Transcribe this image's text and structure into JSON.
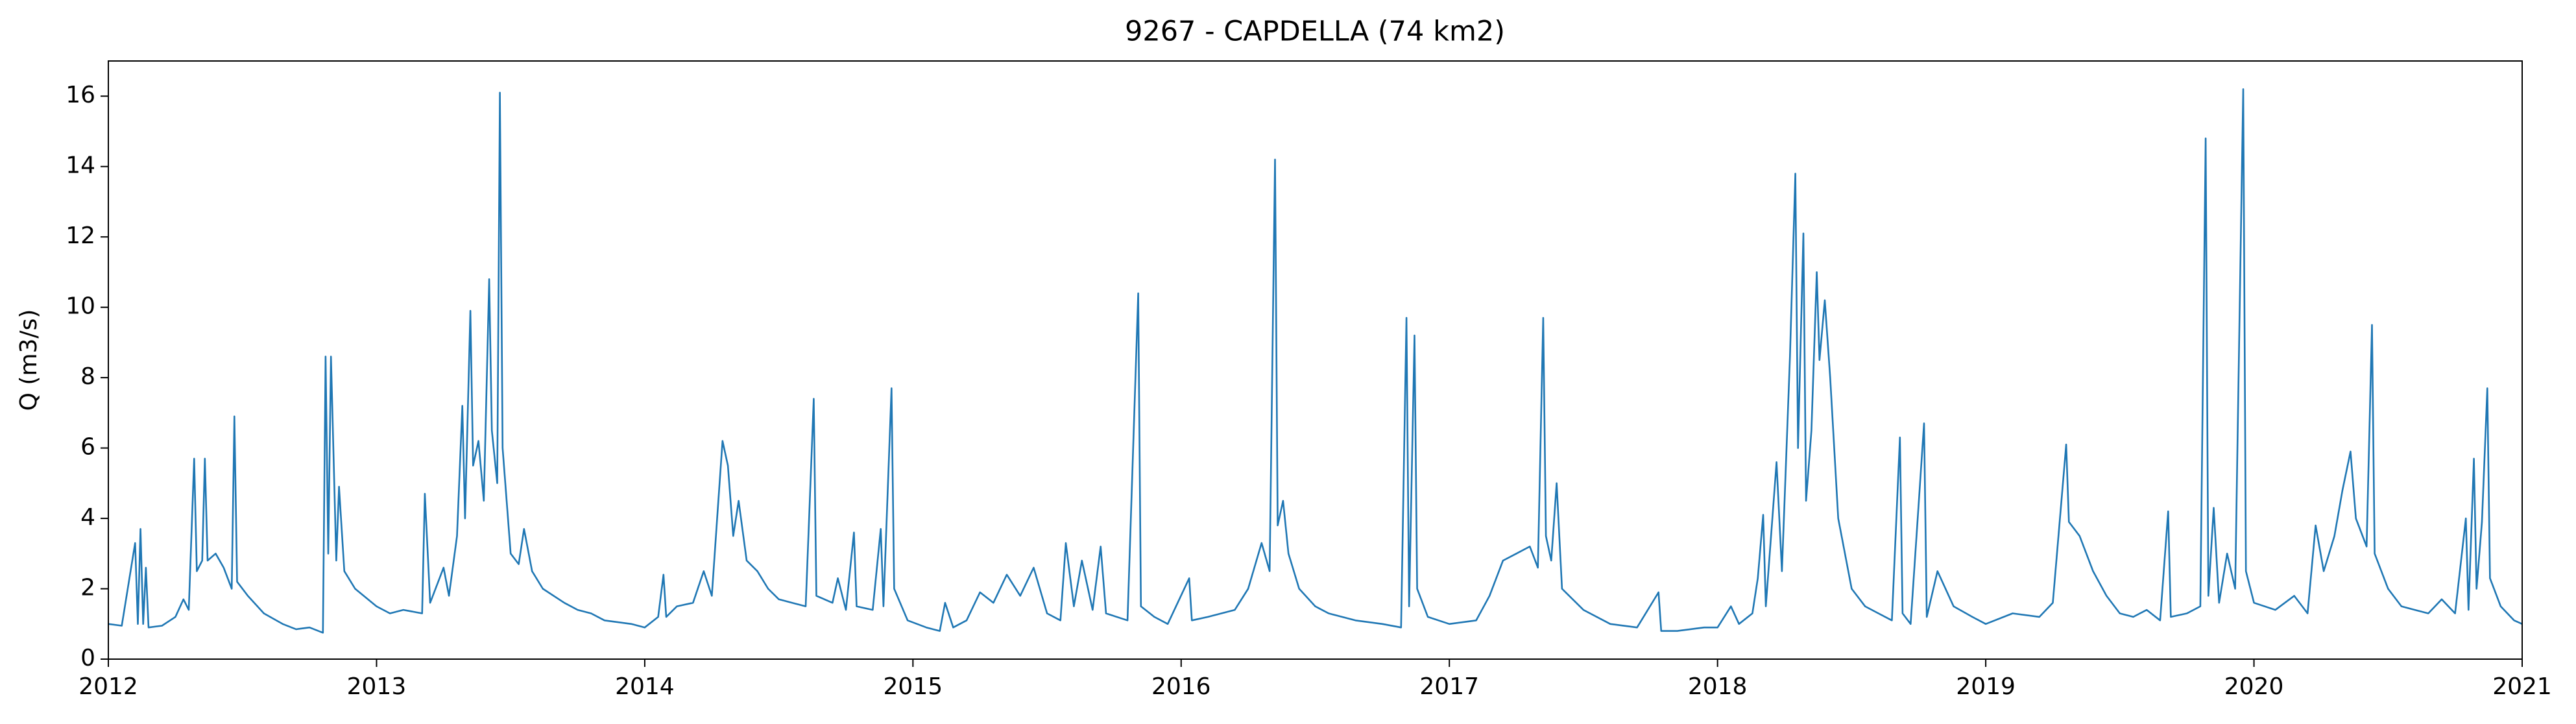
{
  "chart_data": {
    "type": "line",
    "title": "9267 - CAPDELLA (74 km2)",
    "y_label": "Q (m3/s)",
    "xlim": [
      2012,
      2021
    ],
    "xticks": [
      2012,
      2013,
      2014,
      2015,
      2016,
      2017,
      2018,
      2019,
      2020,
      2021
    ],
    "ylim": [
      0,
      17
    ],
    "yticks": [
      0,
      2,
      4,
      6,
      8,
      10,
      12,
      14,
      16
    ],
    "grid": false,
    "series": [
      {
        "name": "Q",
        "color": "#1f77b4",
        "x": [
          2012.0,
          2012.05,
          2012.1,
          2012.11,
          2012.12,
          2012.13,
          2012.14,
          2012.15,
          2012.2,
          2012.25,
          2012.28,
          2012.3,
          2012.32,
          2012.33,
          2012.35,
          2012.36,
          2012.37,
          2012.4,
          2012.43,
          2012.46,
          2012.47,
          2012.48,
          2012.52,
          2012.58,
          2012.65,
          2012.7,
          2012.75,
          2012.8,
          2012.81,
          2012.82,
          2012.83,
          2012.85,
          2012.86,
          2012.88,
          2012.92,
          2013.0,
          2013.05,
          2013.1,
          2013.17,
          2013.18,
          2013.2,
          2013.25,
          2013.27,
          2013.3,
          2013.32,
          2013.33,
          2013.35,
          2013.36,
          2013.38,
          2013.4,
          2013.42,
          2013.43,
          2013.45,
          2013.46,
          2013.47,
          2013.5,
          2013.53,
          2013.55,
          2013.58,
          2013.62,
          2013.7,
          2013.75,
          2013.8,
          2013.85,
          2013.95,
          2014.0,
          2014.05,
          2014.07,
          2014.08,
          2014.12,
          2014.18,
          2014.22,
          2014.25,
          2014.27,
          2014.29,
          2014.31,
          2014.33,
          2014.35,
          2014.38,
          2014.42,
          2014.46,
          2014.5,
          2014.55,
          2014.6,
          2014.63,
          2014.64,
          2014.7,
          2014.72,
          2014.75,
          2014.78,
          2014.79,
          2014.85,
          2014.88,
          2014.89,
          2014.92,
          2014.93,
          2014.98,
          2015.05,
          2015.1,
          2015.12,
          2015.15,
          2015.2,
          2015.25,
          2015.3,
          2015.35,
          2015.4,
          2015.45,
          2015.5,
          2015.55,
          2015.57,
          2015.6,
          2015.63,
          2015.67,
          2015.7,
          2015.72,
          2015.8,
          2015.84,
          2015.85,
          2015.9,
          2015.95,
          2016.03,
          2016.04,
          2016.1,
          2016.15,
          2016.2,
          2016.25,
          2016.3,
          2016.33,
          2016.35,
          2016.36,
          2016.38,
          2016.4,
          2016.44,
          2016.5,
          2016.55,
          2016.65,
          2016.75,
          2016.82,
          2016.84,
          2016.85,
          2016.87,
          2016.88,
          2016.92,
          2017.0,
          2017.1,
          2017.15,
          2017.2,
          2017.25,
          2017.3,
          2017.33,
          2017.35,
          2017.36,
          2017.38,
          2017.4,
          2017.42,
          2017.5,
          2017.6,
          2017.7,
          2017.78,
          2017.79,
          2017.85,
          2017.95,
          2018.0,
          2018.05,
          2018.08,
          2018.13,
          2018.15,
          2018.17,
          2018.18,
          2018.22,
          2018.24,
          2018.27,
          2018.29,
          2018.3,
          2018.32,
          2018.33,
          2018.35,
          2018.37,
          2018.38,
          2018.4,
          2018.42,
          2018.45,
          2018.5,
          2018.55,
          2018.6,
          2018.65,
          2018.68,
          2018.69,
          2018.72,
          2018.77,
          2018.78,
          2018.82,
          2018.88,
          2018.95,
          2019.0,
          2019.1,
          2019.2,
          2019.25,
          2019.3,
          2019.31,
          2019.35,
          2019.4,
          2019.45,
          2019.5,
          2019.55,
          2019.6,
          2019.65,
          2019.68,
          2019.69,
          2019.75,
          2019.8,
          2019.82,
          2019.83,
          2019.85,
          2019.87,
          2019.9,
          2019.93,
          2019.96,
          2019.97,
          2020.0,
          2020.08,
          2020.15,
          2020.2,
          2020.23,
          2020.26,
          2020.3,
          2020.33,
          2020.36,
          2020.38,
          2020.42,
          2020.44,
          2020.45,
          2020.5,
          2020.55,
          2020.6,
          2020.65,
          2020.7,
          2020.75,
          2020.79,
          2020.8,
          2020.82,
          2020.83,
          2020.85,
          2020.87,
          2020.88,
          2020.92,
          2020.97,
          2021.0
        ],
        "values": [
          1.0,
          0.95,
          3.3,
          1.0,
          3.7,
          1.0,
          2.6,
          0.9,
          0.95,
          1.2,
          1.7,
          1.4,
          5.7,
          2.5,
          2.8,
          5.7,
          2.8,
          3.0,
          2.6,
          2.0,
          6.9,
          2.2,
          1.8,
          1.3,
          1.0,
          0.85,
          0.9,
          0.75,
          8.6,
          3.0,
          8.6,
          2.8,
          4.9,
          2.5,
          2.0,
          1.5,
          1.3,
          1.4,
          1.3,
          4.7,
          1.6,
          2.6,
          1.8,
          3.5,
          7.2,
          4.0,
          9.9,
          5.5,
          6.2,
          4.5,
          10.8,
          6.5,
          5.0,
          16.1,
          6.0,
          3.0,
          2.7,
          3.7,
          2.5,
          2.0,
          1.6,
          1.4,
          1.3,
          1.1,
          1.0,
          0.9,
          1.2,
          2.4,
          1.2,
          1.5,
          1.6,
          2.5,
          1.8,
          4.0,
          6.2,
          5.5,
          3.5,
          4.5,
          2.8,
          2.5,
          2.0,
          1.7,
          1.6,
          1.5,
          7.4,
          1.8,
          1.6,
          2.3,
          1.4,
          3.6,
          1.5,
          1.4,
          3.7,
          1.5,
          7.7,
          2.0,
          1.1,
          0.9,
          0.8,
          1.6,
          0.9,
          1.1,
          1.9,
          1.6,
          2.4,
          1.8,
          2.6,
          1.3,
          1.1,
          3.3,
          1.5,
          2.8,
          1.4,
          3.2,
          1.3,
          1.1,
          10.4,
          1.5,
          1.2,
          1.0,
          2.3,
          1.1,
          1.2,
          1.3,
          1.4,
          2.0,
          3.3,
          2.5,
          14.2,
          3.8,
          4.5,
          3.0,
          2.0,
          1.5,
          1.3,
          1.1,
          1.0,
          0.9,
          9.7,
          1.5,
          9.2,
          2.0,
          1.2,
          1.0,
          1.1,
          1.8,
          2.8,
          3.0,
          3.2,
          2.6,
          9.7,
          3.5,
          2.8,
          5.0,
          2.0,
          1.4,
          1.0,
          0.9,
          1.9,
          0.8,
          0.8,
          0.9,
          0.9,
          1.5,
          1.0,
          1.3,
          2.3,
          4.1,
          1.5,
          5.6,
          2.5,
          8.6,
          13.8,
          6.0,
          12.1,
          4.5,
          6.5,
          11.0,
          8.5,
          10.2,
          8.0,
          4.0,
          2.0,
          1.5,
          1.3,
          1.1,
          6.3,
          1.3,
          1.0,
          6.7,
          1.2,
          2.5,
          1.5,
          1.2,
          1.0,
          1.3,
          1.2,
          1.6,
          6.1,
          3.9,
          3.5,
          2.5,
          1.8,
          1.3,
          1.2,
          1.4,
          1.1,
          4.2,
          1.2,
          1.3,
          1.5,
          14.8,
          1.8,
          4.3,
          1.6,
          3.0,
          2.0,
          16.2,
          2.5,
          1.6,
          1.4,
          1.8,
          1.3,
          3.8,
          2.5,
          3.5,
          4.8,
          5.9,
          4.0,
          3.2,
          9.5,
          3.0,
          2.0,
          1.5,
          1.4,
          1.3,
          1.7,
          1.3,
          4.0,
          1.4,
          5.7,
          2.0,
          3.9,
          7.7,
          2.3,
          1.5,
          1.1,
          1.0
        ]
      }
    ]
  }
}
